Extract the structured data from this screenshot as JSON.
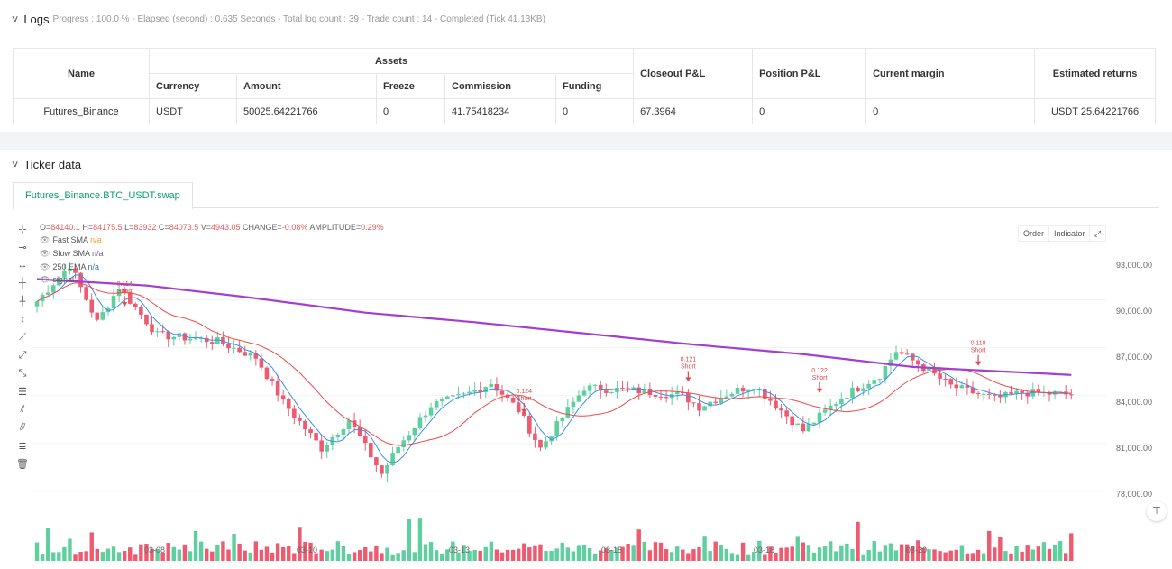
{
  "logs": {
    "title": "Logs",
    "summary": "Progress : 100.0 % - Elapsed (second) : 0.635  Seconds - Total log count : 39 - Trade count : 14 - Completed (Tick 41.13KB)",
    "table": {
      "headers": {
        "name": "Name",
        "assets": "Assets",
        "currency": "Currency",
        "amount": "Amount",
        "freeze": "Freeze",
        "commission": "Commission",
        "funding": "Funding",
        "closeout": "Closeout P&L",
        "position": "Position P&L",
        "margin": "Current margin",
        "returns": "Estimated returns"
      },
      "row": {
        "name": "Futures_Binance",
        "currency": "USDT",
        "amount": "50025.64221766",
        "freeze": "0",
        "commission": "41.75418234",
        "funding": "0",
        "closeout": "67.3964",
        "position": "0",
        "margin": "0",
        "returns": "USDT 25.64221766"
      }
    }
  },
  "ticker": {
    "title": "Ticker data",
    "tab": "Futures_Binance.BTC_USDT.swap",
    "ohlc": {
      "o_key": "O=",
      "o": "84140.1",
      "h_key": " H=",
      "h": "84175.5",
      "l_key": " L=",
      "l": "83932",
      "c_key": " C=",
      "c": "84073.5",
      "v_key": " V=",
      "v": "4943.05",
      "chg_key": " CHANGE=",
      "chg": "-0.08%",
      "amp_key": " AMPLITUDE=",
      "amp": "0.29%"
    },
    "indicators": [
      {
        "name": "Fast SMA",
        "value": "n/a",
        "color": "#f0a020"
      },
      {
        "name": "Slow SMA",
        "value": "n/a",
        "color": "#7a5cc0"
      },
      {
        "name": "250 EMA",
        "value": "n/a",
        "color": "#2f6fd6"
      },
      {
        "name": "signal",
        "value": "",
        "color": "#555"
      }
    ],
    "controls": {
      "order": "Order",
      "indicator": "Indicator",
      "expand_icon": "expand-icon"
    },
    "toolbar_icons": [
      "crosshair-icon",
      "horizontal-ray-icon",
      "horizontal-line-icon",
      "vertical-line-icon",
      "vertical-segment-icon",
      "vertical-ray-icon",
      "trend-line-icon",
      "ray-line-icon",
      "extended-line-icon",
      "price-range-icon",
      "parallel-channel-icon",
      "fib-channel-icon",
      "fib-retracement-icon",
      "trash-icon"
    ]
  },
  "chart_data": {
    "type": "candlestick",
    "y_ticks": [
      "93,000.00",
      "90,000.00",
      "87,000.00",
      "84,000.00",
      "81,000.00",
      "78,000.00"
    ],
    "y_tick_values": [
      93000,
      90000,
      87000,
      84000,
      81000,
      78000
    ],
    "ylim": [
      75800,
      95000
    ],
    "x_ticks": [
      "03-08",
      "03-10",
      "03-13",
      "03-15",
      "03-18",
      "03-20"
    ],
    "x_tick_index": [
      20,
      48,
      76,
      104,
      132,
      160
    ],
    "n_candles": 190,
    "price_path": [
      [
        0,
        89900
      ],
      [
        6,
        92200
      ],
      [
        11,
        88600
      ],
      [
        15,
        90800
      ],
      [
        22,
        87800
      ],
      [
        28,
        87600
      ],
      [
        33,
        87400
      ],
      [
        40,
        86400
      ],
      [
        45,
        83600
      ],
      [
        52,
        80700
      ],
      [
        57,
        82500
      ],
      [
        63,
        79100
      ],
      [
        66,
        80800
      ],
      [
        72,
        83400
      ],
      [
        78,
        84000
      ],
      [
        83,
        84800
      ],
      [
        88,
        83100
      ],
      [
        92,
        80700
      ],
      [
        97,
        83100
      ],
      [
        100,
        84500
      ],
      [
        110,
        84300
      ],
      [
        118,
        84000
      ],
      [
        121,
        83300
      ],
      [
        126,
        84100
      ],
      [
        131,
        84700
      ],
      [
        135,
        83400
      ],
      [
        140,
        81800
      ],
      [
        147,
        83900
      ],
      [
        154,
        85300
      ],
      [
        157,
        86800
      ],
      [
        161,
        86000
      ],
      [
        167,
        84600
      ],
      [
        175,
        83800
      ],
      [
        180,
        84200
      ],
      [
        189,
        84070
      ]
    ],
    "ema250": [
      [
        0,
        91300
      ],
      [
        20,
        90900
      ],
      [
        40,
        90100
      ],
      [
        60,
        89200
      ],
      [
        80,
        88600
      ],
      [
        100,
        87900
      ],
      [
        120,
        87200
      ],
      [
        140,
        86600
      ],
      [
        160,
        85800
      ],
      [
        189,
        85300
      ]
    ],
    "signals": [
      {
        "i": 16,
        "price": 89400,
        "value": "0.114",
        "label": "Short"
      },
      {
        "i": 89,
        "price": 82700,
        "value": "0.124",
        "label": "Short"
      },
      {
        "i": 119,
        "price": 84700,
        "value": "0.121",
        "label": "Short"
      },
      {
        "i": 143,
        "price": 84000,
        "value": "0.122",
        "label": "Short"
      },
      {
        "i": 172,
        "price": 85700,
        "value": "0.118",
        "label": "Short"
      }
    ],
    "colors": {
      "up": "#5fcf9f",
      "down": "#ee5a6f",
      "fast": "#3b8ee8",
      "slow": "#ef4a4a",
      "ema": "#a43ed0",
      "signal": "#e04848"
    }
  }
}
